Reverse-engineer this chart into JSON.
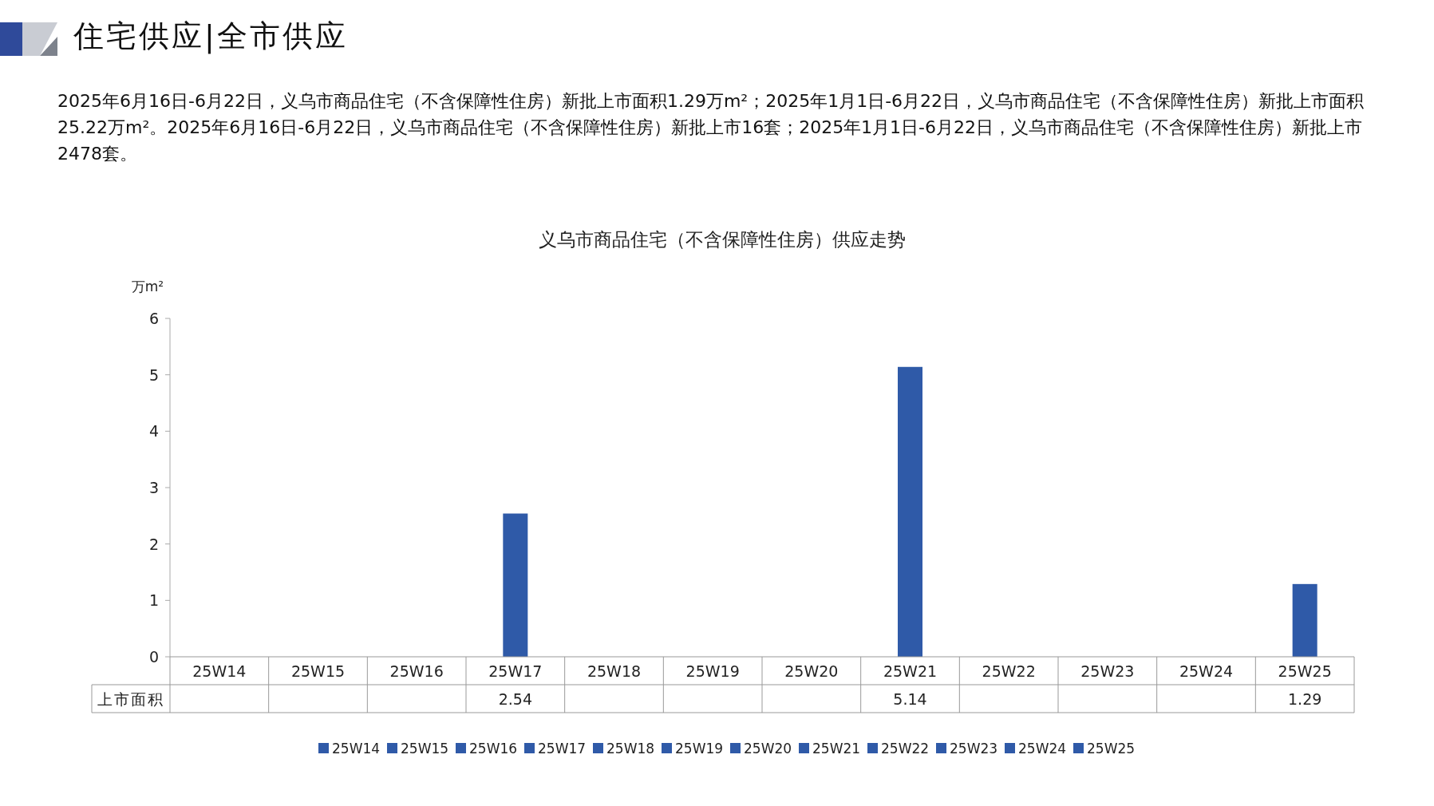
{
  "chart_data": {
    "type": "bar",
    "title": "义乌市商品住宅（不含保障性住房）供应走势",
    "ylabel": "万m²",
    "annotations": [
      "住宅供应|全市供应",
      "2025年6月16日-6月22日，义乌市商品住宅（不含保障性住房）新批上市面积1.29万m²；2025年1月1日-6月22日，义乌市商品住宅（不含保障性住房）新批上市面积25.22万m²。2025年6月16日-6月22日，义乌市商品住宅（不含保障性住房）新批上市16套；2025年1月1日-6月22日，义乌市商品住宅（不含保障性住房）新批上市2478套。"
    ],
    "categories": [
      "25W14",
      "25W15",
      "25W16",
      "25W17",
      "25W18",
      "25W19",
      "25W20",
      "25W21",
      "25W22",
      "25W23",
      "25W24",
      "25W25"
    ],
    "series": [
      {
        "name": "上市面积",
        "colors": [
          "#2f5aa8",
          "#2f5aa8",
          "#2f5aa8",
          "#2f5aa8",
          "#2f5aa8",
          "#2f5aa8",
          "#2f5aa8",
          "#2f5aa8",
          "#2f5aa8",
          "#2f5aa8",
          "#2f5aa8",
          "#2f5aa8"
        ],
        "values": [
          null,
          null,
          null,
          2.54,
          null,
          null,
          null,
          5.14,
          null,
          null,
          null,
          1.29
        ]
      }
    ],
    "ylim": [
      0,
      6
    ],
    "yticks": [
      0,
      1,
      2,
      3,
      4,
      5,
      6
    ],
    "data_labels": true,
    "legend": "bottom"
  }
}
